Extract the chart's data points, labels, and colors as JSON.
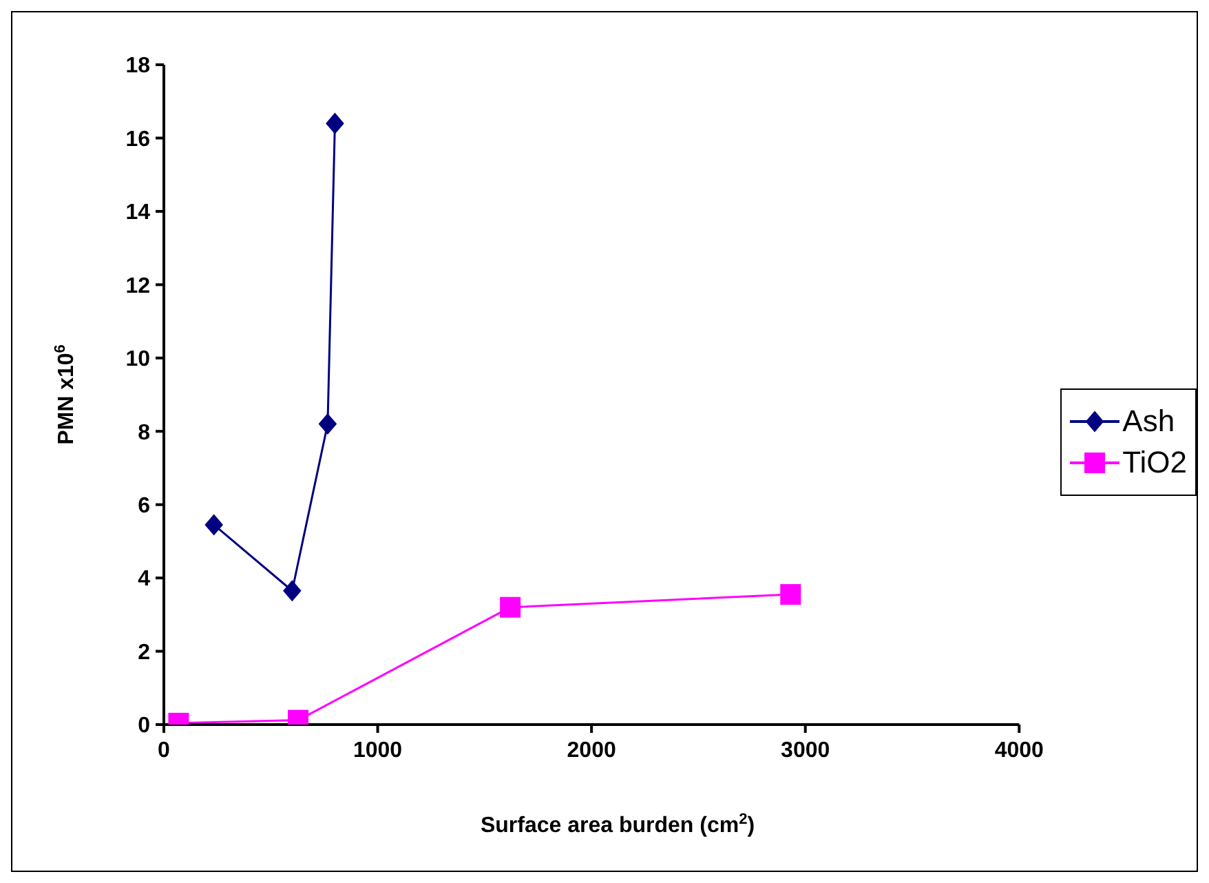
{
  "chart_data": {
    "type": "line",
    "xlabel": "Surface area burden (cm$^{2}$)",
    "ylabel": "PMN x10$^{6}$",
    "xlim": [
      0,
      4000
    ],
    "xticks": [
      0,
      1000,
      2000,
      3000,
      4000
    ],
    "ylim": [
      0,
      18
    ],
    "yticks": [
      0,
      2,
      4,
      6,
      8,
      10,
      12,
      14,
      16,
      18
    ],
    "grid": false,
    "legend": "right",
    "series": [
      {
        "name": "Ash",
        "color": "#000080",
        "marker": "diamond",
        "x": [
          234,
          600,
          766,
          800
        ],
        "values": [
          5.45,
          3.65,
          8.2,
          16.4
        ]
      },
      {
        "name": "TiO2",
        "color": "#ff00ff",
        "marker": "square",
        "x": [
          69,
          628,
          1620,
          2931
        ],
        "values": [
          0.04,
          0.12,
          3.2,
          3.55
        ]
      }
    ]
  }
}
